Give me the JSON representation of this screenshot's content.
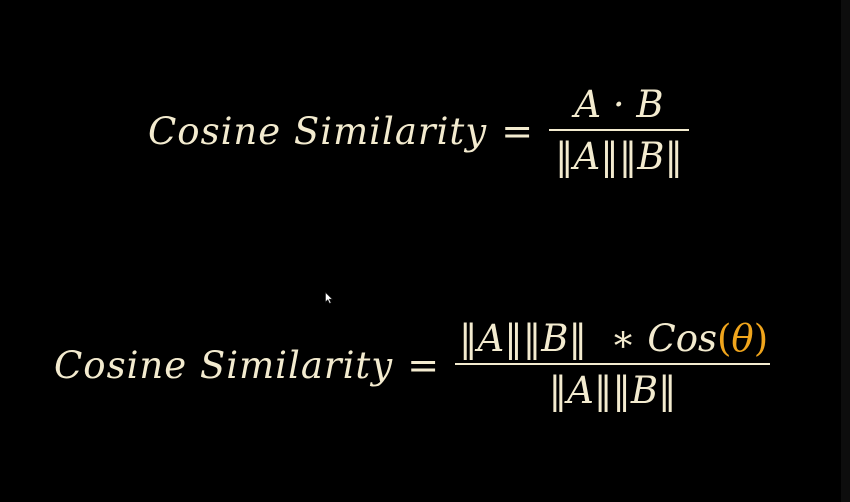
{
  "slide": {
    "background": "#000000",
    "text_color": "#f3ebcf",
    "accent_color": "#f0a51c"
  },
  "equation1": {
    "lhs": "Cosine Similarity",
    "equals": "=",
    "numerator": "A · B",
    "denominator": "‖A‖‖B‖"
  },
  "equation2": {
    "lhs": "Cosine Similarity",
    "equals": "=",
    "numerator_norms": "‖A‖‖B‖",
    "numerator_operator": "∗",
    "numerator_function": "Cos",
    "paren_open": "(",
    "theta": "θ",
    "paren_close": ")",
    "denominator": "‖A‖‖B‖"
  },
  "cursor": {
    "icon": "mouse-pointer-icon"
  }
}
